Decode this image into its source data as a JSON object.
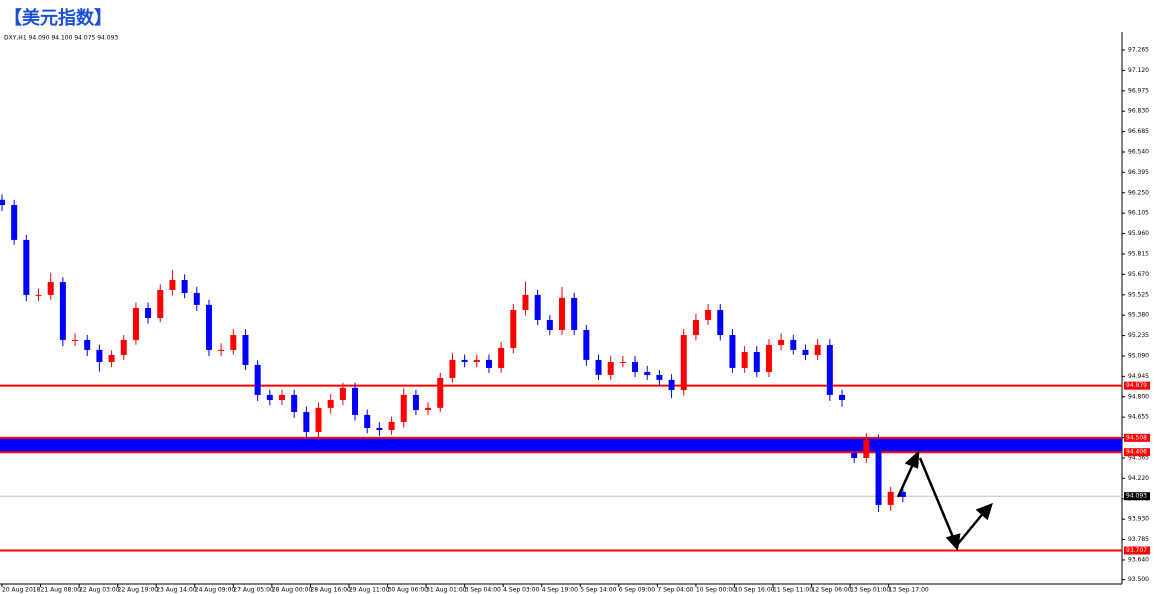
{
  "chart_data": {
    "type": "candlestick",
    "title": "【美元指数】",
    "info": "DXY,H1  94.090 94.100 94.075 94.093",
    "up_color": "#ff0000",
    "down_color": "#0000ff",
    "xlim": [
      0,
      552
    ],
    "ylim": [
      93.469,
      97.393
    ],
    "yticks": [
      97.265,
      {
        "value": 97.12,
        "label": "97.120"
      },
      96.975,
      {
        "value": 96.83,
        "label": "96.830"
      },
      96.685,
      {
        "value": 96.54,
        "label": "96.540"
      },
      96.395,
      {
        "value": 96.25,
        "label": "96.250"
      },
      96.105,
      {
        "value": 95.96,
        "label": "95.960"
      },
      95.815,
      {
        "value": 95.67,
        "label": "95.670"
      },
      95.525,
      {
        "value": 95.38,
        "label": "95.380"
      },
      95.235,
      {
        "value": 95.09,
        "label": "95.090"
      },
      94.945,
      {
        "value": 94.8,
        "label": "94.800"
      },
      94.655,
      {
        "value": 94.51,
        "label": "94.510"
      },
      94.365,
      {
        "value": 94.22,
        "label": "94.220"
      },
      94.075,
      {
        "value": 93.93,
        "label": "93.930"
      },
      93.785,
      {
        "value": 93.64,
        "label": "93.640"
      },
      {
        "value": 93.5,
        "label": "93.500"
      }
    ],
    "xticks": [
      {
        "value": 0,
        "label": "20 Aug 2018"
      },
      {
        "value": 19,
        "label": "21 Aug 08:00"
      },
      {
        "value": 38,
        "label": "22 Aug 03:00"
      },
      {
        "value": 57,
        "label": "22 Aug 19:00"
      },
      {
        "value": 76,
        "label": "23 Aug 14:00"
      },
      {
        "value": 95,
        "label": "24 Aug 09:00"
      },
      {
        "value": 114,
        "label": "27 Aug 05:00"
      },
      {
        "value": 133,
        "label": "28 Aug 00:00"
      },
      {
        "value": 152,
        "label": "28 Aug 16:00"
      },
      {
        "value": 171,
        "label": "29 Aug 11:00"
      },
      {
        "value": 190,
        "label": "30 Aug 06:00"
      },
      {
        "value": 209,
        "label": "31 Aug 01:00"
      },
      {
        "value": 228,
        "label": "3 Sep 04:00"
      },
      {
        "value": 247,
        "label": "4 Sep 03:00"
      },
      {
        "value": 266,
        "label": "4 Sep 19:00"
      },
      {
        "value": 285,
        "label": "5 Sep 14:00"
      },
      {
        "value": 304,
        "label": "6 Sep 09:00"
      },
      {
        "value": 323,
        "label": "7 Sep 04:00"
      },
      {
        "value": 342,
        "label": "10 Sep 00:00"
      },
      {
        "value": 361,
        "label": "10 Sep 16:00"
      },
      {
        "value": 380,
        "label": "11 Sep 11:00"
      },
      {
        "value": 399,
        "label": "12 Sep 06:00"
      },
      {
        "value": 418,
        "label": "13 Sep 01:00"
      },
      {
        "value": 437,
        "label": "13 Sep 17:00"
      }
    ],
    "x": [
      0,
      6,
      12,
      18,
      24,
      30,
      36,
      42,
      48,
      54,
      60,
      66,
      72,
      78,
      84,
      90,
      96,
      102,
      108,
      114,
      120,
      126,
      132,
      138,
      144,
      150,
      156,
      162,
      168,
      174,
      180,
      186,
      192,
      198,
      204,
      210,
      216,
      222,
      228,
      234,
      240,
      246,
      252,
      258,
      264,
      270,
      276,
      282,
      288,
      294,
      300,
      306,
      312,
      318,
      324,
      330,
      336,
      342,
      348,
      354,
      360,
      366,
      372,
      378,
      384,
      390,
      396,
      402,
      408,
      414,
      420,
      426,
      432,
      438,
      444
    ],
    "open": [
      96.2,
      96.163,
      95.915,
      95.524,
      95.524,
      95.616,
      95.204,
      95.204,
      95.133,
      95.047,
      95.097,
      95.204,
      95.431,
      95.36,
      95.559,
      95.63,
      95.538,
      95.453,
      95.133,
      95.133,
      95.239,
      95.026,
      94.813,
      94.777,
      94.813,
      94.692,
      94.55,
      94.721,
      94.777,
      94.863,
      94.671,
      94.578,
      94.564,
      94.621,
      94.813,
      94.706,
      94.721,
      94.934,
      95.062,
      95.047,
      95.062,
      95.005,
      95.147,
      95.417,
      95.524,
      95.346,
      95.275,
      95.503,
      95.275,
      95.062,
      94.955,
      95.047,
      95.047,
      94.976,
      94.955,
      94.92,
      94.848,
      95.239,
      95.346,
      95.417,
      95.239,
      95.005,
      95.118,
      94.976,
      95.168,
      95.204,
      95.133,
      95.097,
      95.168,
      94.813,
      94.4,
      94.365,
      94.493,
      94.031,
      94.124
    ],
    "high": [
      96.24,
      96.2,
      95.95,
      95.57,
      95.68,
      95.65,
      95.25,
      95.24,
      95.17,
      95.13,
      95.24,
      95.47,
      95.47,
      95.6,
      95.7,
      95.67,
      95.58,
      95.49,
      95.18,
      95.28,
      95.28,
      95.06,
      94.85,
      94.85,
      94.85,
      94.73,
      94.76,
      94.82,
      94.9,
      94.9,
      94.71,
      94.62,
      94.66,
      94.86,
      94.85,
      94.76,
      94.97,
      95.11,
      95.1,
      95.1,
      95.1,
      95.19,
      95.46,
      95.62,
      95.56,
      95.38,
      95.58,
      95.54,
      95.31,
      95.1,
      95.09,
      95.09,
      95.09,
      95.02,
      94.99,
      94.96,
      95.28,
      95.39,
      95.46,
      95.46,
      95.28,
      95.16,
      95.16,
      95.21,
      95.25,
      95.24,
      95.17,
      95.21,
      95.21,
      94.85,
      94.44,
      94.54,
      94.53,
      94.16,
      94.15
    ],
    "low": [
      96.12,
      95.88,
      95.48,
      95.48,
      95.49,
      95.16,
      95.16,
      95.09,
      94.98,
      95.01,
      95.06,
      95.17,
      95.32,
      95.33,
      95.52,
      95.5,
      95.41,
      95.09,
      95.09,
      95.1,
      94.99,
      94.77,
      94.74,
      94.74,
      94.65,
      94.49,
      94.51,
      94.68,
      94.74,
      94.63,
      94.54,
      94.52,
      94.53,
      94.58,
      94.67,
      94.67,
      94.69,
      94.9,
      95.01,
      95.01,
      94.97,
      94.97,
      95.11,
      95.38,
      95.31,
      95.24,
      95.24,
      95.24,
      95.02,
      94.92,
      94.92,
      95.01,
      94.94,
      94.92,
      94.88,
      94.79,
      94.81,
      95.2,
      95.31,
      95.2,
      94.97,
      94.97,
      94.94,
      94.94,
      95.13,
      95.1,
      95.06,
      95.06,
      94.77,
      94.73,
      94.33,
      94.33,
      93.98,
      93.99,
      94.05
    ],
    "close": [
      96.163,
      95.915,
      95.524,
      95.524,
      95.616,
      95.204,
      95.204,
      95.133,
      95.047,
      95.097,
      95.204,
      95.431,
      95.36,
      95.559,
      95.63,
      95.538,
      95.453,
      95.133,
      95.133,
      95.239,
      95.026,
      94.813,
      94.777,
      94.813,
      94.692,
      94.55,
      94.721,
      94.777,
      94.863,
      94.671,
      94.578,
      94.564,
      94.621,
      94.813,
      94.706,
      94.721,
      94.934,
      95.062,
      95.047,
      95.062,
      95.005,
      95.147,
      95.417,
      95.524,
      95.346,
      95.275,
      95.503,
      95.275,
      95.062,
      94.955,
      95.047,
      95.047,
      94.976,
      94.955,
      94.92,
      94.848,
      95.239,
      95.346,
      95.417,
      95.239,
      95.005,
      95.118,
      94.976,
      95.168,
      95.204,
      95.133,
      95.097,
      95.168,
      94.813,
      94.777,
      94.365,
      94.493,
      94.031,
      94.124,
      94.088
    ],
    "levels": [
      {
        "value": 94.879,
        "color": "#ff0000"
      },
      {
        "value": 93.707,
        "color": "#ff0000"
      }
    ],
    "zone": {
      "from": 94.406,
      "to": 94.508,
      "color": "#0000ff",
      "edge_color": "#ff0000"
    },
    "current_price": 94.093
  }
}
